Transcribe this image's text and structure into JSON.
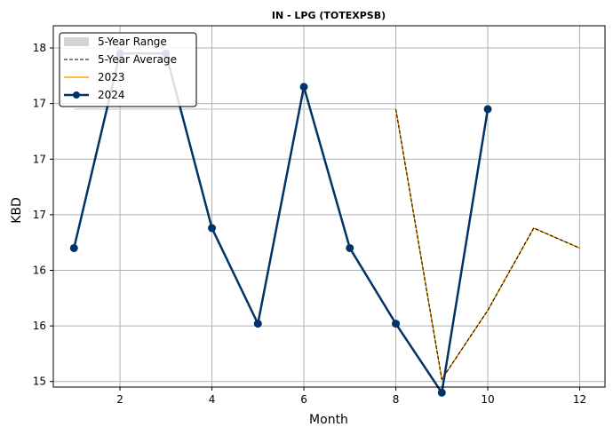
{
  "chart_data": {
    "type": "line",
    "title": "IN - LPG (TOTEXPSB)",
    "xlabel": "Month",
    "ylabel": "KBD",
    "xlim": [
      0.55,
      12.55
    ],
    "ylim": [
      14.95,
      18.2
    ],
    "x_ticks": [
      2,
      4,
      6,
      8,
      10,
      12
    ],
    "y_ticks": [
      {
        "value": 15.0,
        "label": "15"
      },
      {
        "value": 15.5,
        "label": "16"
      },
      {
        "value": 16.0,
        "label": "16"
      },
      {
        "value": 16.5,
        "label": "17"
      },
      {
        "value": 17.0,
        "label": "17"
      },
      {
        "value": 17.5,
        "label": "17"
      },
      {
        "value": 18.0,
        "label": "18"
      }
    ],
    "grid": true,
    "legend_position": "top-left",
    "legend": [
      "5-Year Range",
      "5-Year Average",
      "2023",
      "2024"
    ],
    "series": [
      {
        "name": "5-Year Range",
        "kind": "band",
        "color": "#d3d3d3",
        "x": [
          1,
          2,
          3,
          4,
          5,
          6,
          7,
          8,
          9,
          10,
          11,
          12
        ],
        "low": [
          17.45,
          17.45,
          17.45,
          17.45,
          17.45,
          17.45,
          17.45,
          17.45,
          15.02,
          15.64,
          16.38,
          16.2
        ],
        "high": [
          17.45,
          17.45,
          17.45,
          17.45,
          17.45,
          17.45,
          17.45,
          17.45,
          15.02,
          15.64,
          16.38,
          16.2
        ]
      },
      {
        "name": "5-Year Average",
        "kind": "line",
        "color": "#000000",
        "dashed": true,
        "x": [
          8,
          9,
          10,
          11,
          12
        ],
        "y": [
          17.45,
          15.02,
          15.64,
          16.38,
          16.2
        ]
      },
      {
        "name": "2023",
        "kind": "line",
        "color": "#ffa500",
        "x": [
          8,
          9,
          10,
          11,
          12
        ],
        "y": [
          17.45,
          15.02,
          15.64,
          16.38,
          16.2
        ]
      },
      {
        "name": "2024",
        "kind": "line-marker",
        "color": "#003366",
        "x": [
          1,
          2,
          3,
          4,
          5,
          6,
          7,
          8,
          9,
          10
        ],
        "y": [
          16.2,
          17.95,
          17.95,
          16.38,
          15.52,
          17.65,
          16.2,
          15.52,
          14.9,
          17.45
        ]
      }
    ]
  }
}
